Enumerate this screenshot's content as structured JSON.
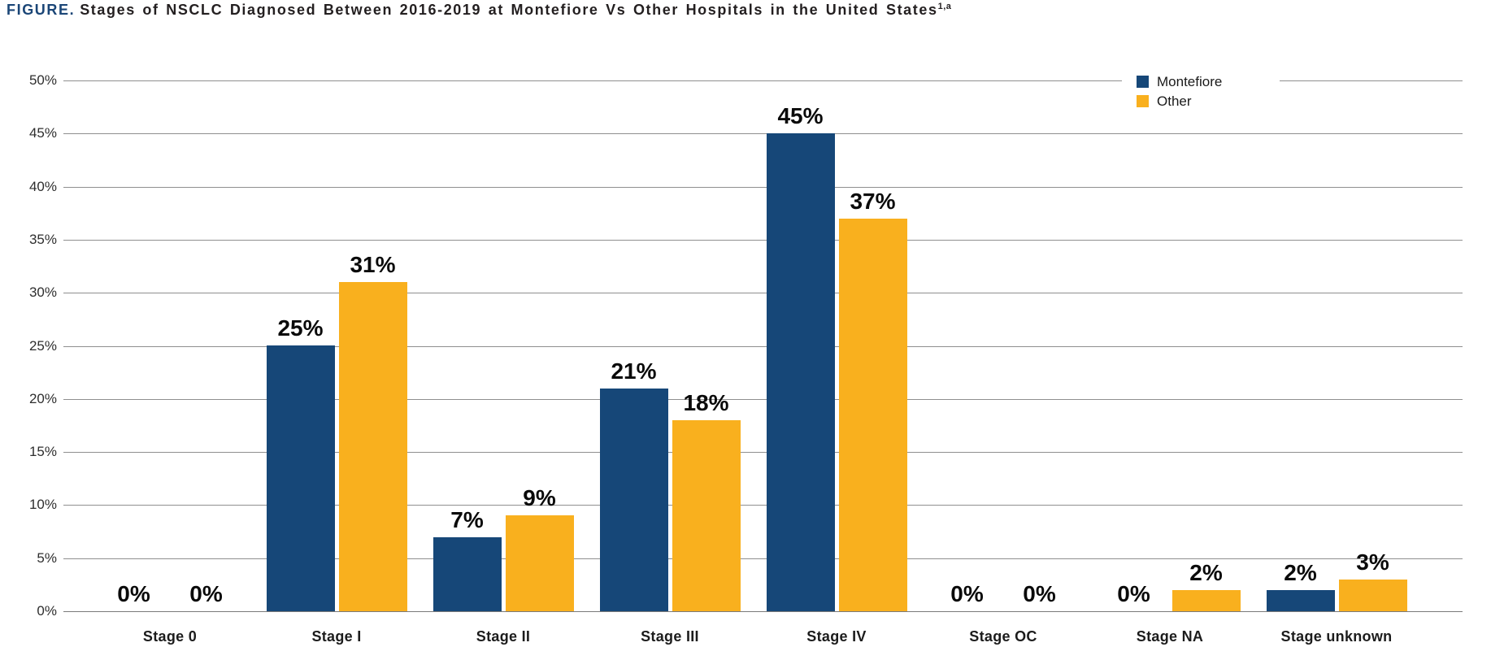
{
  "figure": {
    "label": "FIGURE.",
    "title": "Stages of NSCLC Diagnosed Between 2016-2019 at Montefiore Vs Other Hospitals in the United States",
    "superscript": "1,a"
  },
  "colors": {
    "montefiore_navy": "#164778",
    "other_gold": "#F9B01E",
    "title_accent": "#1b4677",
    "gridline_gray": "#8f8f8f"
  },
  "legend": [
    {
      "name": "Montefiore",
      "color": "#164778"
    },
    {
      "name": "Other",
      "color": "#F9B01E"
    }
  ],
  "chart_data": {
    "type": "bar",
    "title": "FIGURE. Stages of NSCLC Diagnosed Between 2016-2019 at Montefiore Vs Other Hospitals in the United States (1,a)",
    "categories": [
      "Stage 0",
      "Stage I",
      "Stage II",
      "Stage III",
      "Stage IV",
      "Stage OC",
      "Stage NA",
      "Stage unknown"
    ],
    "series": [
      {
        "name": "Montefiore",
        "color": "#164778",
        "values": [
          0,
          25,
          7,
          21,
          45,
          0,
          0,
          2
        ]
      },
      {
        "name": "Other",
        "color": "#F9B01E",
        "values": [
          0,
          31,
          9,
          18,
          37,
          0,
          2,
          3
        ]
      }
    ],
    "value_labels": [
      [
        "0%",
        "0%"
      ],
      [
        "25%",
        "31%"
      ],
      [
        "7%",
        "9%"
      ],
      [
        "21%",
        "18%"
      ],
      [
        "45%",
        "37%"
      ],
      [
        "0%",
        "0%"
      ],
      [
        "0%",
        "2%"
      ],
      [
        "2%",
        "3%"
      ]
    ],
    "xlabel": "",
    "ylabel": "",
    "ylim": [
      0,
      50
    ],
    "ytick_step": 5,
    "ytick_suffix": "%",
    "grid": true,
    "legend_position": "top-right"
  }
}
